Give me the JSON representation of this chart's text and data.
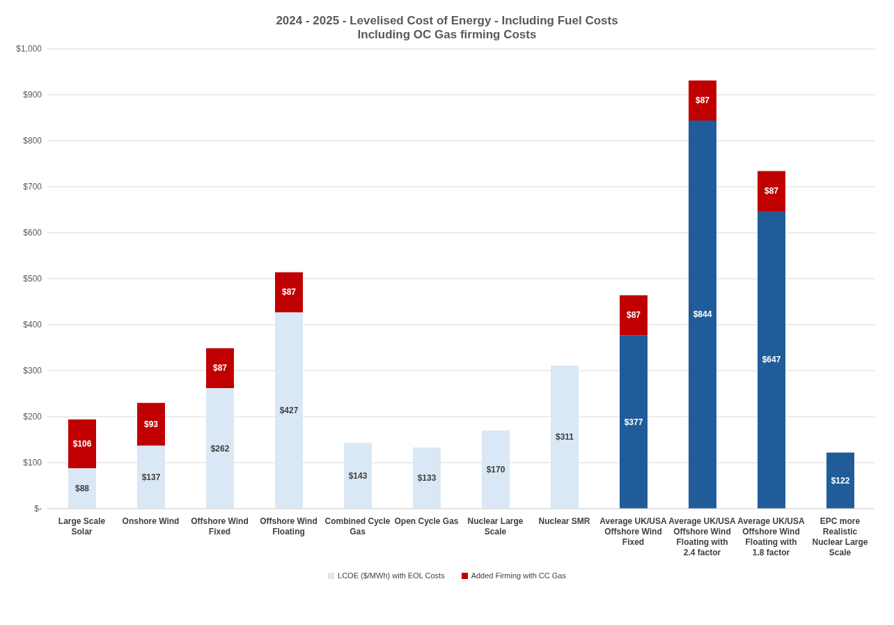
{
  "chart_data": {
    "type": "bar",
    "title": "2024 - 2025 - Levelised Cost of Energy - Including Fuel Costs",
    "subtitle": "Including OC Gas firming Costs",
    "categories": [
      "Large Scale Solar",
      "Onshore Wind",
      "Offshore Wind Fixed",
      "Offshore Wind Floating",
      "Combined Cycle Gas",
      "Open Cycle Gas",
      "Nuclear Large Scale",
      "Nuclear SMR",
      "Average UK/USA Offshore Wind Fixed",
      "Average UK/USA Offshore Wind Floating with 2.4 factor",
      "Average UK/USA Offshore Wind Floating with 1.8 factor",
      "EPC more Realistic Nuclear Large Scale"
    ],
    "stacked": true,
    "series": [
      {
        "name": "LCOE ($/MWh) with EOL Costs",
        "color": "#dae8f5",
        "colors": [
          "#dae8f5",
          "#dae8f5",
          "#dae8f5",
          "#dae8f5",
          "#dae8f5",
          "#dae8f5",
          "#dae8f5",
          "#dae8f5",
          "#1f5c99",
          "#1f5c99",
          "#1f5c99",
          "#1f5c99"
        ],
        "values": [
          88,
          137,
          262,
          427,
          143,
          133,
          170,
          311,
          377,
          844,
          647,
          122
        ],
        "value_labels": [
          "$88",
          "$137",
          "$262",
          "$427",
          "$143",
          "$133",
          "$170",
          "$311",
          "$377",
          "$844",
          "$647",
          "$122"
        ]
      },
      {
        "name": "Added Firming with CC Gas",
        "color": "#c00000",
        "values": [
          106,
          93,
          87,
          87,
          null,
          null,
          null,
          null,
          87,
          87,
          87,
          null
        ],
        "value_labels": [
          "$106",
          "$93",
          "$87",
          "$87",
          null,
          null,
          null,
          null,
          "$87",
          "$87",
          "$87",
          null
        ]
      }
    ],
    "ylim": [
      0,
      1000
    ],
    "yticks": [
      {
        "value": 0,
        "label": "$-"
      },
      {
        "value": 100,
        "label": "$100"
      },
      {
        "value": 200,
        "label": "$200"
      },
      {
        "value": 300,
        "label": "$300"
      },
      {
        "value": 400,
        "label": "$400"
      },
      {
        "value": 500,
        "label": "$500"
      },
      {
        "value": 600,
        "label": "$600"
      },
      {
        "value": 700,
        "label": "$700"
      },
      {
        "value": 800,
        "label": "$800"
      },
      {
        "value": 900,
        "label": "$900"
      },
      {
        "value": 1000,
        "label": "$1,000"
      }
    ],
    "grid": "y",
    "legend": "bottom"
  }
}
